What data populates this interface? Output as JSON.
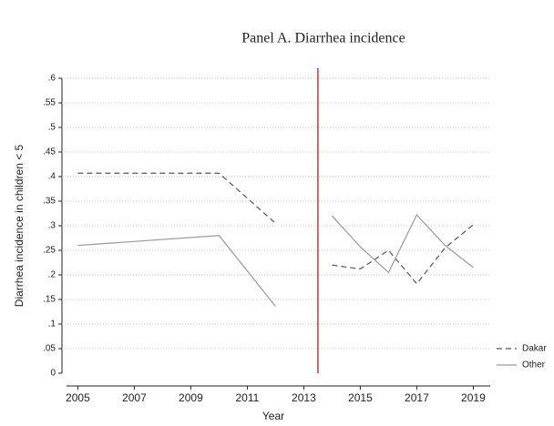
{
  "chart_data": {
    "type": "line",
    "title": "Panel A. Diarrhea incidence",
    "xlabel": "Year",
    "ylabel": "Diarrhea incidence in children < 5",
    "x": [
      2005,
      2010,
      2012,
      2013,
      2014,
      2015,
      2016,
      2017,
      2018,
      2019
    ],
    "series": [
      {
        "name": "Dakar",
        "color": "#555555",
        "dash": true,
        "values": [
          0.407,
          0.407,
          0.305,
          null,
          0.22,
          0.212,
          0.25,
          0.182,
          0.255,
          0.302
        ]
      },
      {
        "name": "Other",
        "color": "#999999",
        "dash": false,
        "values": [
          0.26,
          0.28,
          0.136,
          null,
          0.32,
          0.257,
          0.205,
          0.322,
          0.26,
          0.215
        ]
      }
    ],
    "xlim": [
      2004.6,
      2019.6
    ],
    "xticks": [
      2005,
      2007,
      2009,
      2011,
      2013,
      2015,
      2017,
      2019
    ],
    "ylim": [
      0,
      0.6
    ],
    "yticks": [
      0,
      {
        "value": 0.05,
        "label": ".05"
      },
      {
        "value": 0.1,
        "label": ".1"
      },
      {
        "value": 0.15,
        "label": ".15"
      },
      {
        "value": 0.2,
        "label": ".2"
      },
      {
        "value": 0.25,
        "label": ".25"
      },
      {
        "value": 0.3,
        "label": ".3"
      },
      {
        "value": 0.35,
        "label": ".35"
      },
      {
        "value": 0.4,
        "label": ".4"
      },
      {
        "value": 0.45,
        "label": ".45"
      },
      {
        "value": 0.5,
        "label": ".5"
      },
      {
        "value": 0.55,
        "label": ".55"
      },
      {
        "value": 0.6,
        "label": ".6"
      }
    ],
    "vline": {
      "value": 2013.5,
      "color": "#cc0000"
    },
    "grid": true,
    "legend": "bottom-right"
  }
}
